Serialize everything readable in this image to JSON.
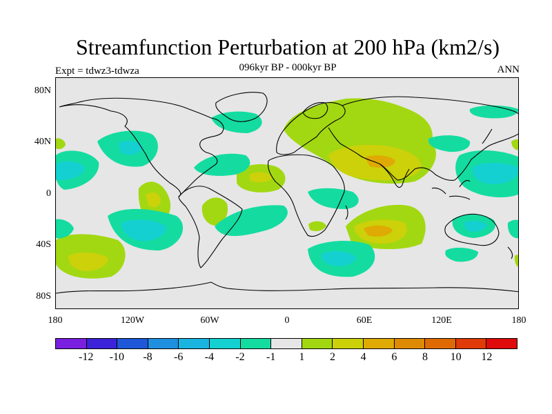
{
  "title": "Streamfunction Perturbation at 200 hPa (km2/s)",
  "subtitle": "096kyr BP - 000kyr BP",
  "left_label": "Expt = tdwz3-tdwza",
  "right_label": "ANN",
  "y_ticks": [
    "80N",
    "40N",
    "0",
    "40S",
    "80S"
  ],
  "x_ticks": [
    "180",
    "120W",
    "60W",
    "0",
    "60E",
    "120E",
    "180"
  ],
  "colorbar": {
    "colors": [
      "#7a1fe0",
      "#3c22d8",
      "#1e58d8",
      "#1f8fe0",
      "#19b4df",
      "#14d0d0",
      "#14dca0",
      "#e6e6e6",
      "#a2d812",
      "#ccd10a",
      "#dfaa04",
      "#df8a04",
      "#df6a04",
      "#df3a08",
      "#df0a0a"
    ],
    "labels": [
      "-12",
      "-10",
      "-8",
      "-6",
      "-4",
      "-2",
      "-1",
      "1",
      "2",
      "4",
      "6",
      "8",
      "10",
      "12"
    ]
  }
}
